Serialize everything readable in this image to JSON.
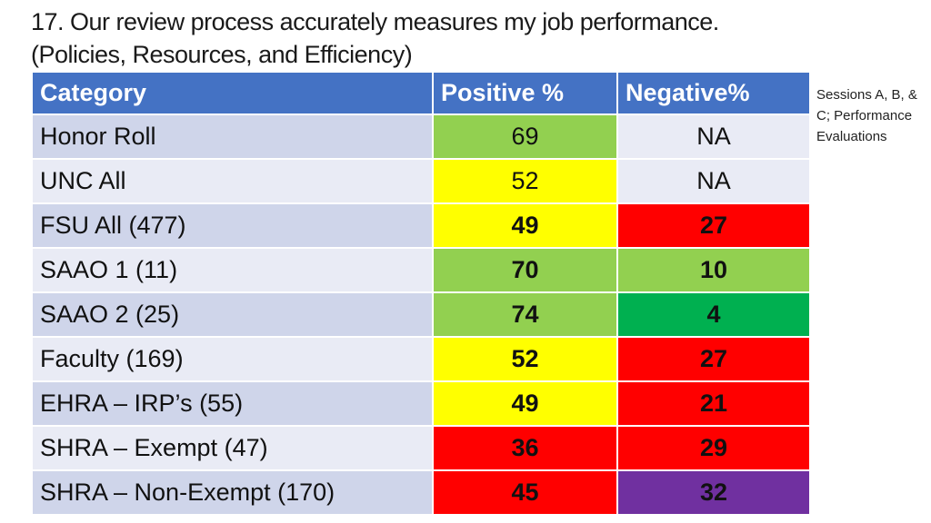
{
  "title": {
    "line1": "17. Our review process accurately measures my job performance.",
    "line2": "(Policies, Resources, and Efficiency)"
  },
  "side_note": "Sessions A, B, & C; Performance Evaluations",
  "table": {
    "headers": [
      "Category",
      "Positive %",
      "Negative%"
    ],
    "rows": [
      {
        "category": "Honor Roll",
        "positive": "69",
        "negative": "NA",
        "pos_color": "#92d050",
        "neg_color": "#e9ebf5",
        "bold": false
      },
      {
        "category": "UNC All",
        "positive": "52",
        "negative": "NA",
        "pos_color": "#ffff00",
        "neg_color": "#e9ebf5",
        "bold": false
      },
      {
        "category": "FSU All (477)",
        "positive": "49",
        "negative": "27",
        "pos_color": "#ffff00",
        "neg_color": "#ff0000",
        "bold": true
      },
      {
        "category": "SAAO 1 (11)",
        "positive": "70",
        "negative": "10",
        "pos_color": "#92d050",
        "neg_color": "#92d050",
        "bold": true
      },
      {
        "category": "SAAO 2 (25)",
        "positive": "74",
        "negative": "4",
        "pos_color": "#92d050",
        "neg_color": "#00b050",
        "bold": true
      },
      {
        "category": "Faculty (169)",
        "positive": "52",
        "negative": "27",
        "pos_color": "#ffff00",
        "neg_color": "#ff0000",
        "bold": true
      },
      {
        "category": "EHRA – IRP’s (55)",
        "positive": "49",
        "negative": "21",
        "pos_color": "#ffff00",
        "neg_color": "#ff0000",
        "bold": true
      },
      {
        "category": "SHRA – Exempt (47)",
        "positive": "36",
        "negative": "29",
        "pos_color": "#ff0000",
        "neg_color": "#ff0000",
        "bold": true
      },
      {
        "category": "SHRA – Non-Exempt (170)",
        "positive": "45",
        "negative": "32",
        "pos_color": "#ff0000",
        "neg_color": "#7030a0",
        "bold": true
      }
    ]
  }
}
